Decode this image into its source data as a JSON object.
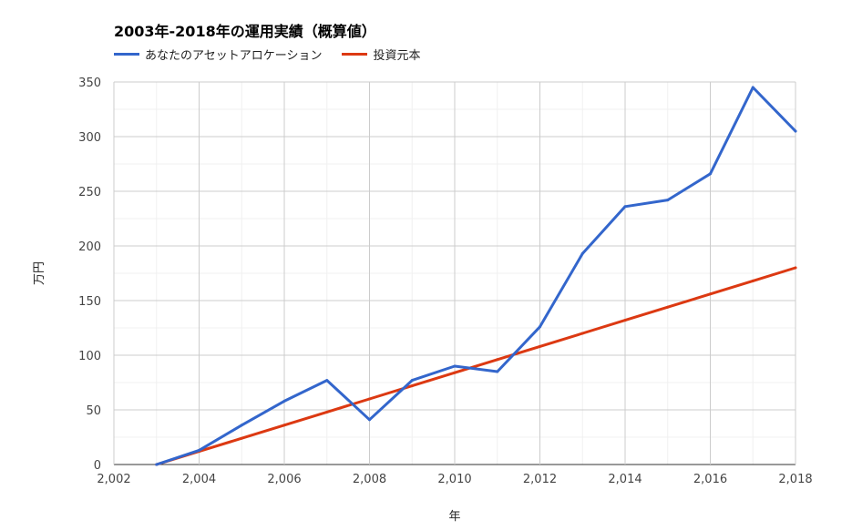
{
  "chart_data": {
    "type": "line",
    "title": "2003年-2018年の運用実績（概算値）",
    "xlabel": "年",
    "ylabel": "万円",
    "xlim": [
      2002,
      2018
    ],
    "ylim": [
      0,
      350
    ],
    "x_ticks": [
      2002,
      2004,
      2006,
      2008,
      2010,
      2012,
      2014,
      2016,
      2018
    ],
    "y_ticks": [
      0,
      50,
      100,
      150,
      200,
      250,
      300,
      350
    ],
    "x_tick_labels": [
      "2,002",
      "2,004",
      "2,006",
      "2,008",
      "2,010",
      "2,012",
      "2,014",
      "2,016",
      "2,018"
    ],
    "y_tick_labels": [
      "0",
      "50",
      "100",
      "150",
      "200",
      "250",
      "300",
      "350"
    ],
    "grid": true,
    "legend_position": "top",
    "series": [
      {
        "name": "あなたのアセットアロケーション",
        "color": "#3366cc",
        "x": [
          2003,
          2004,
          2005,
          2006,
          2007,
          2008,
          2009,
          2010,
          2011,
          2012,
          2013,
          2014,
          2015,
          2016,
          2017,
          2018
        ],
        "y": [
          0,
          13,
          36,
          58,
          77,
          41,
          77,
          90,
          85,
          126,
          193,
          236,
          242,
          266,
          345,
          305
        ]
      },
      {
        "name": "投資元本",
        "color": "#dc3912",
        "x": [
          2003,
          2004,
          2005,
          2006,
          2007,
          2008,
          2009,
          2010,
          2011,
          2012,
          2013,
          2014,
          2015,
          2016,
          2017,
          2018
        ],
        "y": [
          0,
          12,
          24,
          36,
          48,
          60,
          72,
          84,
          96,
          108,
          120,
          132,
          144,
          156,
          168,
          180
        ]
      }
    ]
  }
}
